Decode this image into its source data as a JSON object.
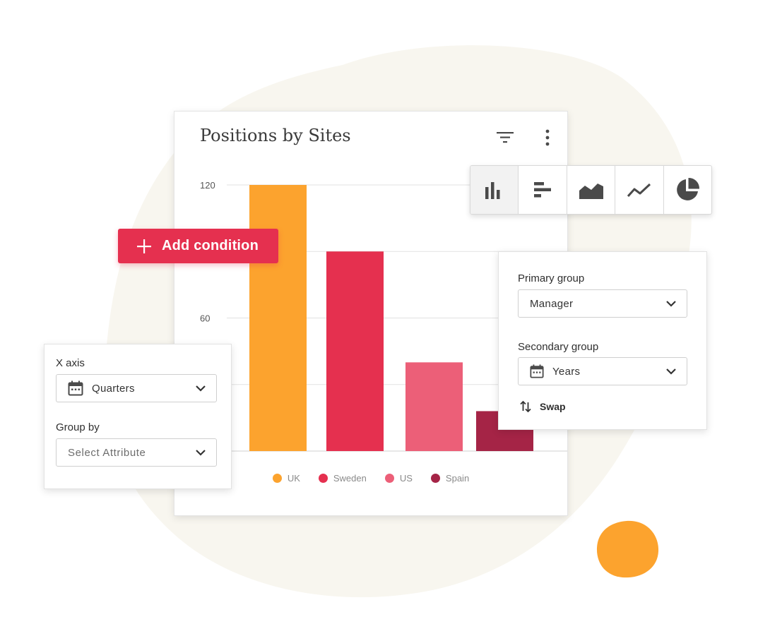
{
  "colors": {
    "blob_background": "#f8f6ef",
    "orange_blob": "#fca32e",
    "accent": "#e5304f"
  },
  "card": {
    "title": "Positions by Sites",
    "filter_icon": "filter-icon",
    "more_icon": "more-vertical-icon"
  },
  "chart_data": {
    "type": "bar",
    "title": "Positions by Sites",
    "categories": [
      "UK",
      "Sweden",
      "US",
      "Spain"
    ],
    "values": [
      120,
      90,
      40,
      18
    ],
    "colors": [
      "#fca32e",
      "#e5304f",
      "#ec5f78",
      "#a52446"
    ],
    "y_ticks": [
      "120",
      "60"
    ],
    "ylim": [
      0,
      120
    ],
    "grid": true,
    "legend": "bottom"
  },
  "toolbar": {
    "buttons": [
      {
        "icon": "vertical-bar-chart-icon",
        "active": true
      },
      {
        "icon": "horizontal-bar-chart-icon",
        "active": false
      },
      {
        "icon": "area-chart-icon",
        "active": false
      },
      {
        "icon": "line-chart-icon",
        "active": false
      },
      {
        "icon": "pie-chart-icon",
        "active": false
      }
    ]
  },
  "add_condition": {
    "label": "Add condition",
    "icon": "plus-icon"
  },
  "left_panel": {
    "x_axis_label": "X axis",
    "x_axis_value": "Quarters",
    "group_by_label": "Group by",
    "group_by_placeholder": "Select Attribute"
  },
  "right_panel": {
    "primary_label": "Primary group",
    "primary_value": "Manager",
    "secondary_label": "Secondary group",
    "secondary_value": "Years",
    "swap_label": "Swap"
  }
}
